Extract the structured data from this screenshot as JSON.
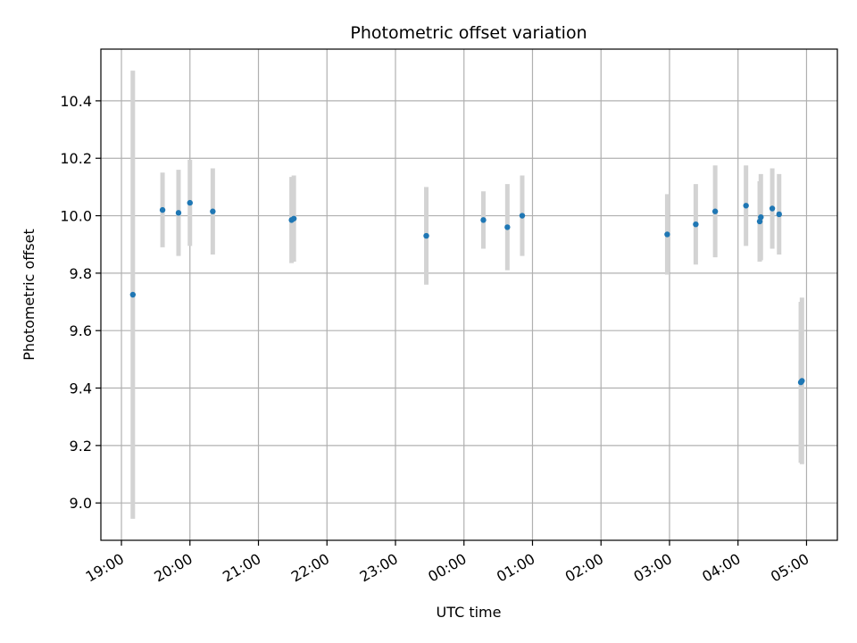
{
  "chart_data": {
    "type": "scatter",
    "title": "Photometric offset variation",
    "xlabel": "UTC time",
    "ylabel": "Photometric offset",
    "x_ticks": [
      "19:00",
      "20:00",
      "21:00",
      "22:00",
      "23:00",
      "00:00",
      "01:00",
      "02:00",
      "03:00",
      "04:00",
      "05:00"
    ],
    "y_ticks": [
      "9.0",
      "9.2",
      "9.4",
      "9.6",
      "9.8",
      "10.0",
      "10.2",
      "10.4"
    ],
    "xlim_hours": [
      18.7,
      29.45
    ],
    "ylim": [
      8.87,
      10.58
    ],
    "grid": true,
    "colors": {
      "point": "#1f77b4",
      "errorbar": "#d3d3d3",
      "grid": "#b0b0b0"
    },
    "points": [
      {
        "t": "19:10",
        "y": 9.725,
        "err": 0.78
      },
      {
        "t": "19:36",
        "y": 10.02,
        "err": 0.13
      },
      {
        "t": "19:50",
        "y": 10.01,
        "err": 0.15
      },
      {
        "t": "20:00",
        "y": 10.045,
        "err": 0.15
      },
      {
        "t": "20:20",
        "y": 10.015,
        "err": 0.15
      },
      {
        "t": "21:29",
        "y": 9.985,
        "err": 0.15
      },
      {
        "t": "21:31",
        "y": 9.99,
        "err": 0.15
      },
      {
        "t": "23:27",
        "y": 9.93,
        "err": 0.17
      },
      {
        "t": "00:17",
        "y": 9.985,
        "err": 0.1
      },
      {
        "t": "00:38",
        "y": 9.96,
        "err": 0.15
      },
      {
        "t": "00:51",
        "y": 10.0,
        "err": 0.14
      },
      {
        "t": "02:58",
        "y": 9.935,
        "err": 0.14
      },
      {
        "t": "03:23",
        "y": 9.97,
        "err": 0.14
      },
      {
        "t": "03:40",
        "y": 10.015,
        "err": 0.16
      },
      {
        "t": "04:07",
        "y": 10.035,
        "err": 0.14
      },
      {
        "t": "04:19",
        "y": 9.98,
        "err": 0.14
      },
      {
        "t": "04:20",
        "y": 9.995,
        "err": 0.15
      },
      {
        "t": "04:30",
        "y": 10.025,
        "err": 0.14
      },
      {
        "t": "04:36",
        "y": 10.005,
        "err": 0.14
      },
      {
        "t": "04:55",
        "y": 9.42,
        "err": 0.28
      },
      {
        "t": "04:56",
        "y": 9.425,
        "err": 0.29
      }
    ]
  }
}
